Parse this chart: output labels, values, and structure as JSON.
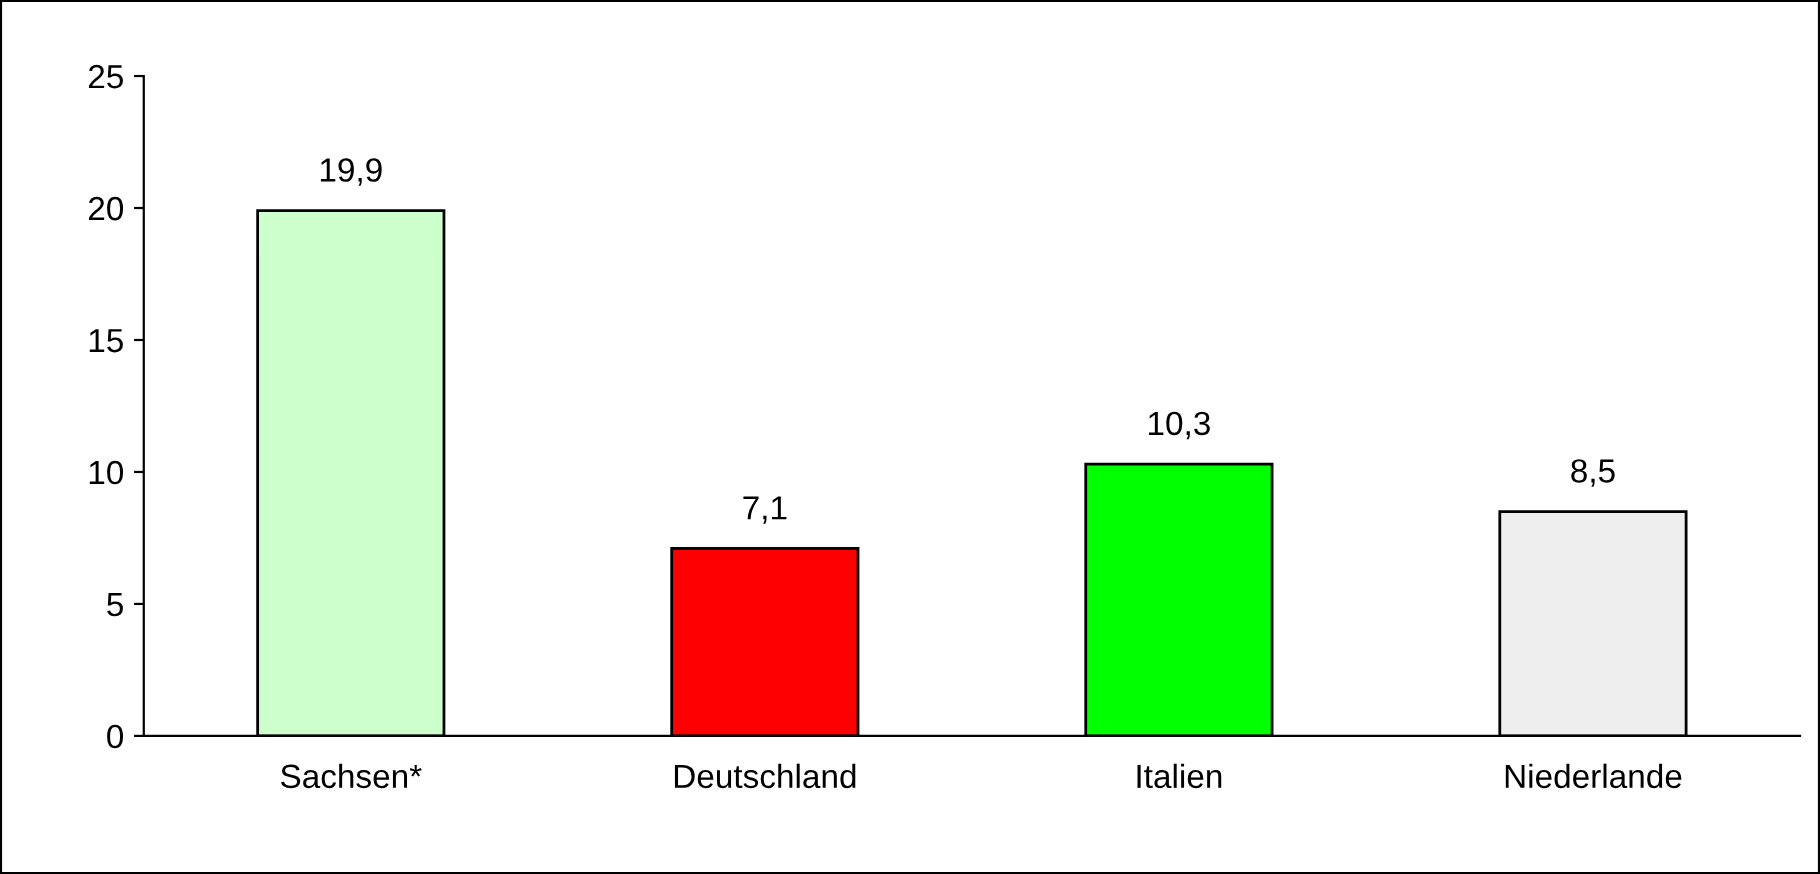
{
  "chart_data": {
    "type": "bar",
    "categories": [
      "Sachsen*",
      "Deutschland",
      "Italien",
      "Niederlande"
    ],
    "values": [
      19.9,
      7.1,
      10.3,
      8.5
    ],
    "colors": [
      "#ccffcc",
      "#ff0000",
      "#00ff00",
      "#eeeeee"
    ],
    "value_labels": [
      "19,9",
      "7,1",
      "10,3",
      "8,5"
    ],
    "ylim": [
      0,
      25
    ],
    "yticks": [
      0,
      5,
      10,
      15,
      20,
      25
    ],
    "grid": false,
    "legend": false
  }
}
